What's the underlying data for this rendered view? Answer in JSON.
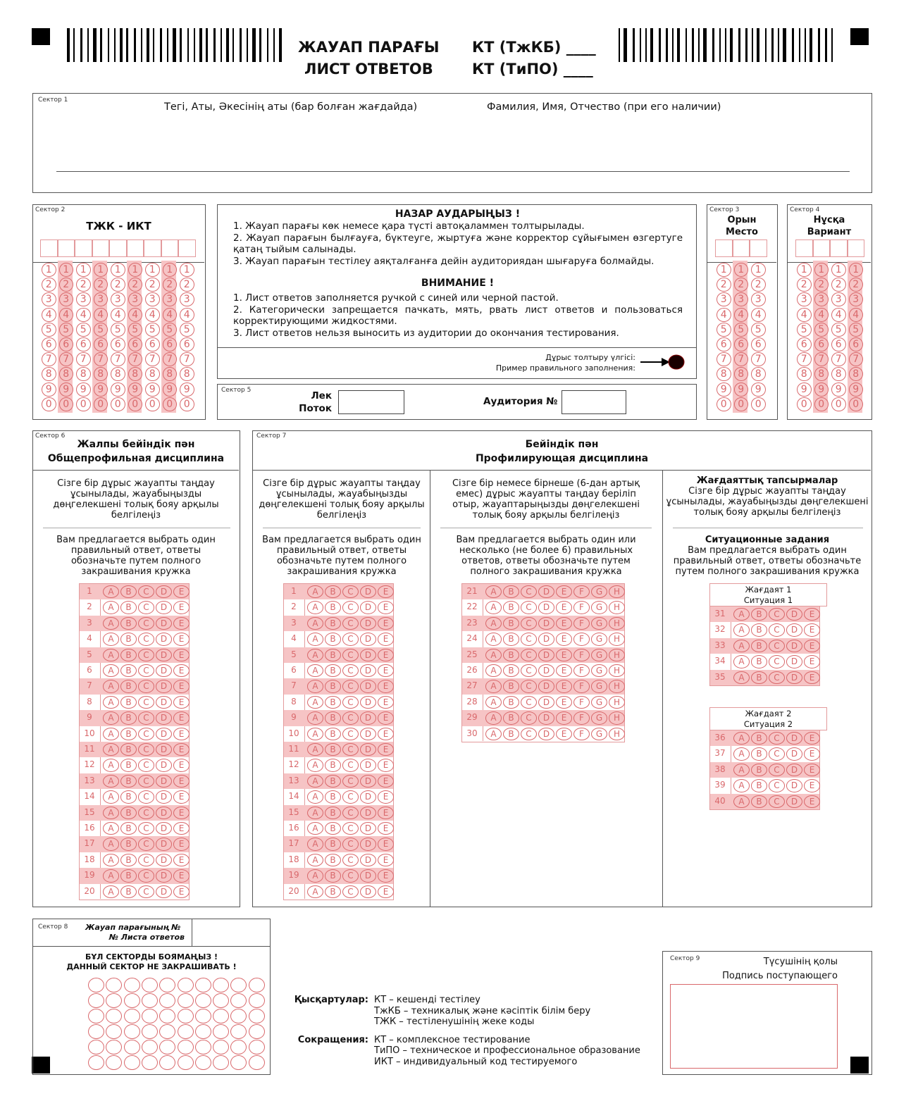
{
  "header": {
    "title_kz": "ЖАУАП ПАРАҒЫ",
    "title_ru": "ЛИСТ ОТВЕТОВ",
    "kt_kz": "КТ (ТжКБ) ____",
    "kt_ru": "КТ (ТиПО) ____"
  },
  "sector1": {
    "label": "Сектор 1",
    "name_kz": "Тегі, Аты, Әкесінің аты (бар болған жағдайда)",
    "name_ru": "Фамилия, Имя,  Отчество (при его наличии)"
  },
  "sector2": {
    "label": "Сектор 2",
    "title": "ТЖК - ИКТ",
    "columns": 9,
    "shaded_columns": [
      1,
      3,
      5,
      7
    ]
  },
  "digits": [
    "1",
    "2",
    "3",
    "4",
    "5",
    "6",
    "7",
    "8",
    "9",
    "0"
  ],
  "notice": {
    "title_kz": "НАЗАР АУДАРЫҢЫЗ !",
    "items_kz": [
      "1. Жауап парағы көк немесе қара түсті автоқаламмен толтырылады.",
      "2. Жауап парағын былғауға, бүктеуге, жыртуға және корректор сұйығымен өзгертуге қатаң тыйым салынады.",
      "3. Жауап парағын тестілеу аяқталғанға дейін аудиториядан шығаруға болмайды."
    ],
    "title_ru": "ВНИМАНИЕ !",
    "items_ru": [
      "1. Лист ответов заполняется ручкой с синей или черной пастой.",
      "2. Категорически запрещается пачкать, мять, рвать лист ответов и пользоваться корректирующими жидкостями.",
      "3. Лист ответов нельзя выносить из аудитории до окончания тестирования."
    ],
    "example_kz": "Дұрыс толтыру үлгісі:",
    "example_ru": "Пример правильного заполнения:"
  },
  "sector3": {
    "label": "Сектор 3",
    "title_kz": "Орын",
    "title_ru": "Место",
    "columns": 3,
    "shaded_columns": [
      1
    ]
  },
  "sector4": {
    "label": "Сектор 4",
    "title_kz": "Нұсқа",
    "title_ru": "Вариант",
    "columns": 4,
    "shaded_columns": [
      1,
      3
    ]
  },
  "sector5": {
    "label": "Сектор 5",
    "lek": "Лек",
    "potok": "Поток",
    "auditoria": "Аудитория №",
    "lek_value": "",
    "auditoria_value": ""
  },
  "sector6": {
    "label": "Сектор 6",
    "title_kz": "Жалпы бейіндік пән",
    "title_ru": "Общепрофильная дисциплина",
    "instr_kz": "Сізге бір дұрыс жауапты таңдау ұсынылады, жауабыңызды дөңгелекшені толық бояу арқылы белгілеңіз",
    "instr_ru": "Вам предлагается выбрать один правильный ответ, ответы обозначьте путем полного закрашивания кружка",
    "questions": [
      1,
      2,
      3,
      4,
      5,
      6,
      7,
      8,
      9,
      10,
      11,
      12,
      13,
      14,
      15,
      16,
      17,
      18,
      19,
      20
    ]
  },
  "sector7": {
    "label": "Сектор 7",
    "title_kz": "Бейіндік пән",
    "title_ru": "Профилирующая дисциплина",
    "col1": {
      "instr_kz": "Сізге бір дұрыс жауапты таңдау ұсынылады, жауабыңызды дөңгелекшені толық бояу арқылы белгілеңіз",
      "instr_ru": "Вам предлагается выбрать один правильный ответ, ответы обозначьте путем полного закрашивания кружка",
      "questions": [
        1,
        2,
        3,
        4,
        5,
        6,
        7,
        8,
        9,
        10,
        11,
        12,
        13,
        14,
        15,
        16,
        17,
        18,
        19,
        20
      ]
    },
    "col2": {
      "instr_kz": "Сізге бір немесе бірнеше (6-дан артық емес) дұрыс жауапты таңдау берiлiп отыр, жауаптарыңызды дөңгелекшені толық бояу арқылы белгілеңіз",
      "instr_ru": "Вам предлагается выбрать один или несколько (не более 6) правильных ответов, ответы обозначьте путем полного закрашивания кружка",
      "questions": [
        21,
        22,
        23,
        24,
        25,
        26,
        27,
        28,
        29,
        30
      ]
    },
    "col3": {
      "heading_kz": "Жағдаяттық тапсырмалар",
      "instr_kz": "Сізге бір дұрыс жауапты таңдау ұсынылады, жауабыңызды дөңгелекшені толық бояу арқылы белгілеңіз",
      "heading_ru": "Ситуационные задания",
      "instr_ru": "Вам предлагается выбрать один правильный ответ, ответы обозначьте путем полного закрашивания кружка",
      "situations": [
        {
          "kz": "Жағдаят 1",
          "ru": "Ситуация 1",
          "questions": [
            31,
            32,
            33,
            34,
            35
          ]
        },
        {
          "kz": "Жағдаят 2",
          "ru": "Ситуация 2",
          "questions": [
            36,
            37,
            38,
            39,
            40
          ]
        }
      ]
    }
  },
  "options5": [
    "A",
    "B",
    "C",
    "D",
    "E"
  ],
  "options8": [
    "A",
    "B",
    "C",
    "D",
    "E",
    "F",
    "G",
    "H"
  ],
  "sector8": {
    "label": "Сектор 8",
    "title_kz": "Жауап парағының №",
    "title_ru": "№ Листа ответов",
    "warn_kz": "БҰЛ СЕКТОРДЫ БОЯМАҢЫЗ !",
    "warn_ru": "ДАННЫЙ СЕКТОР НЕ ЗАКРАШИВАТЬ !"
  },
  "abbr": {
    "kz_label": "Қысқартулар:",
    "kz_items": [
      "КТ – кешенді тестілеу",
      "ТжКБ – техникалық және кәсіптік білім беру",
      "ТЖК – тестіленушінің жеке коды"
    ],
    "ru_label": "Сокращения:",
    "ru_items": [
      "КТ – комплексное тестирование",
      "ТиПО – техническое и профессиональное образование",
      "ИКТ – индивидуальный код тестируемого"
    ]
  },
  "sector9": {
    "label": "Сектор 9",
    "sign_kz": "Түсушінің қолы",
    "sign_ru": "Подпись поступающего"
  },
  "colors": {
    "bubble": "#d9686b",
    "shade": "#f6c4c5",
    "border": "#555555"
  }
}
